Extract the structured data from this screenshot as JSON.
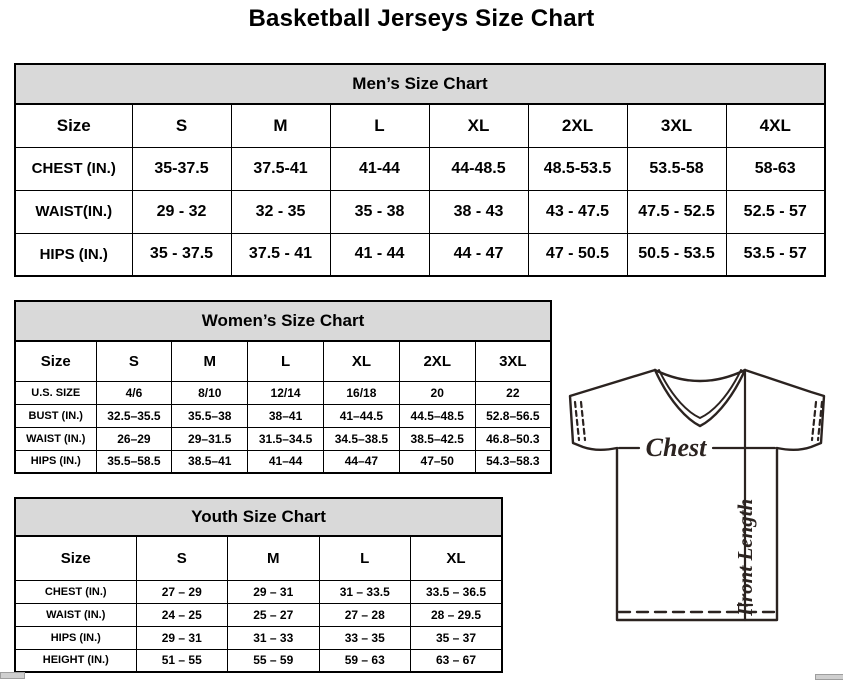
{
  "page": {
    "title": "Basketball Jerseys Size Chart"
  },
  "tables": {
    "men": {
      "title": "Men’s Size Chart",
      "size_label": "Size",
      "columns": [
        "S",
        "M",
        "L",
        "XL",
        "2XL",
        "3XL",
        "4XL"
      ],
      "rows": [
        {
          "label": "CHEST (IN.)",
          "values": [
            "35-37.5",
            "37.5-41",
            "41-44",
            "44-48.5",
            "48.5-53.5",
            "53.5-58",
            "58-63"
          ]
        },
        {
          "label": "WAIST(IN.)",
          "values": [
            "29 - 32",
            "32 - 35",
            "35 - 38",
            "38 - 43",
            "43 - 47.5",
            "47.5 - 52.5",
            "52.5 - 57"
          ]
        },
        {
          "label": "HIPS (IN.)",
          "values": [
            "35 - 37.5",
            "37.5 - 41",
            "41 - 44",
            "44 - 47",
            "47 - 50.5",
            "50.5 - 53.5",
            "53.5 - 57"
          ]
        }
      ]
    },
    "women": {
      "title": "Women’s Size Chart",
      "size_label": "Size",
      "columns": [
        "S",
        "M",
        "L",
        "XL",
        "2XL",
        "3XL"
      ],
      "rows": [
        {
          "label": "U.S. SIZE",
          "values": [
            "4/6",
            "8/10",
            "12/14",
            "16/18",
            "20",
            "22"
          ]
        },
        {
          "label": "BUST (IN.)",
          "values": [
            "32.5–35.5",
            "35.5–38",
            "38–41",
            "41–44.5",
            "44.5–48.5",
            "52.8–56.5"
          ]
        },
        {
          "label": "WAIST (IN.)",
          "values": [
            "26–29",
            "29–31.5",
            "31.5–34.5",
            "34.5–38.5",
            "38.5–42.5",
            "46.8–50.3"
          ]
        },
        {
          "label": "HIPS (IN.)",
          "values": [
            "35.5–58.5",
            "38.5–41",
            "41–44",
            "44–47",
            "47–50",
            "54.3–58.3"
          ]
        }
      ]
    },
    "youth": {
      "title": "Youth Size Chart",
      "size_label": "Size",
      "columns": [
        "S",
        "M",
        "L",
        "XL"
      ],
      "rows": [
        {
          "label": "CHEST (IN.)",
          "values": [
            "27 – 29",
            "29 – 31",
            "31 – 33.5",
            "33.5 – 36.5"
          ]
        },
        {
          "label": "WAIST (IN.)",
          "values": [
            "24 – 25",
            "25 – 27",
            "27 – 28",
            "28 – 29.5"
          ]
        },
        {
          "label": "HIPS (IN.)",
          "values": [
            "29 – 31",
            "31 – 33",
            "33 – 35",
            "35 – 37"
          ]
        },
        {
          "label": "HEIGHT (IN.)",
          "values": [
            "51 – 55",
            "55 – 59",
            "59 – 63",
            "63 – 67"
          ]
        }
      ]
    }
  },
  "diagram": {
    "chest_label": "Chest",
    "front_length_label": "Front Length",
    "line_color": "#2b2320"
  },
  "layout_colors": {
    "band_background": "#d9d9d9",
    "border": "#000000"
  }
}
